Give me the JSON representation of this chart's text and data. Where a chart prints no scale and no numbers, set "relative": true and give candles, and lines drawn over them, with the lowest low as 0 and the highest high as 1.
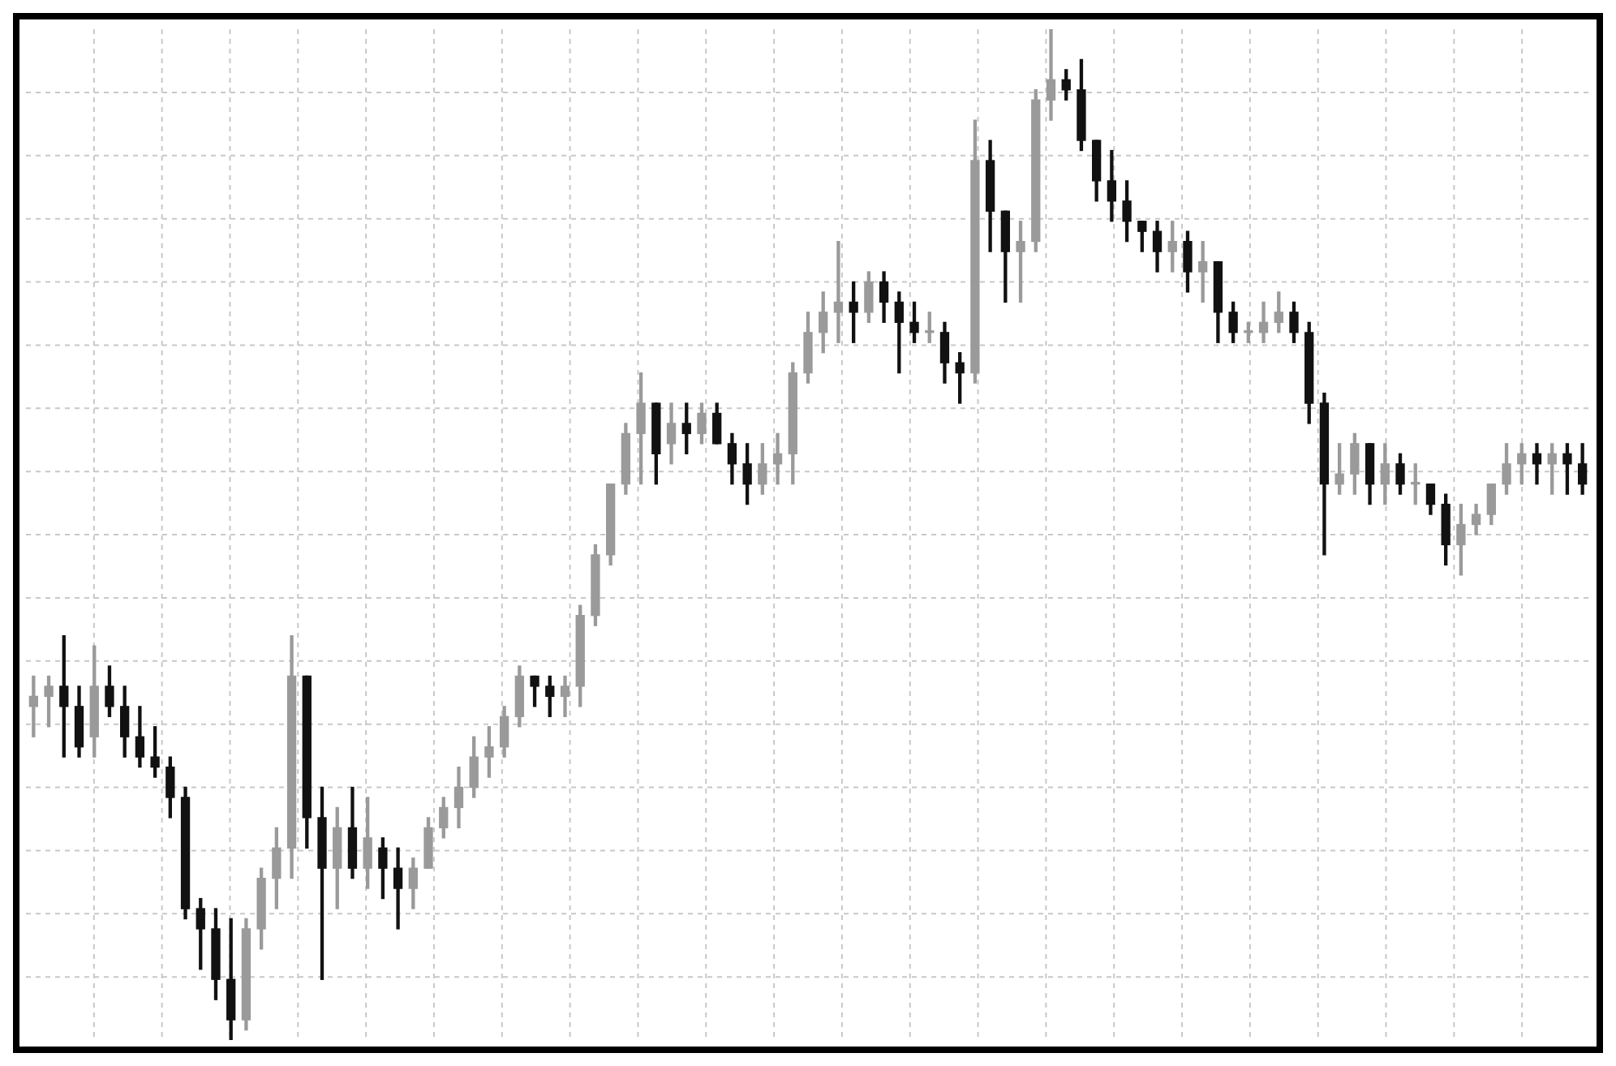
{
  "chart_data": {
    "type": "candlestick",
    "relative": true,
    "grid": true,
    "categories": [
      null,
      null,
      null,
      null,
      null,
      null,
      null,
      null,
      null,
      null,
      null,
      null,
      null,
      null,
      null,
      null,
      null,
      null,
      null,
      null,
      null,
      null,
      null,
      null,
      null,
      null,
      null,
      null,
      null,
      null,
      null,
      null,
      null,
      null,
      null,
      null,
      null,
      null,
      null,
      null,
      null,
      null,
      null,
      null,
      null,
      null,
      null,
      null,
      null,
      null,
      null,
      null,
      null,
      null,
      null,
      null,
      null,
      null,
      null,
      null,
      null,
      null,
      null,
      null,
      null,
      null,
      null,
      null,
      null,
      null,
      null,
      null,
      null,
      null,
      null,
      null,
      null,
      null,
      null,
      null,
      null,
      null,
      null,
      null,
      null,
      null,
      null,
      null,
      null,
      null,
      null,
      null,
      null,
      null,
      null,
      null,
      null,
      null,
      null,
      null,
      null,
      null,
      null
    ],
    "ohlc": [
      [
        0.33,
        0.36,
        0.3,
        0.34
      ],
      [
        0.34,
        0.36,
        0.31,
        0.35
      ],
      [
        0.35,
        0.4,
        0.28,
        0.33
      ],
      [
        0.33,
        0.35,
        0.28,
        0.29
      ],
      [
        0.3,
        0.39,
        0.28,
        0.35
      ],
      [
        0.35,
        0.37,
        0.32,
        0.33
      ],
      [
        0.33,
        0.35,
        0.28,
        0.3
      ],
      [
        0.3,
        0.33,
        0.27,
        0.28
      ],
      [
        0.28,
        0.31,
        0.26,
        0.27
      ],
      [
        0.27,
        0.28,
        0.22,
        0.24
      ],
      [
        0.24,
        0.25,
        0.12,
        0.13
      ],
      [
        0.13,
        0.14,
        0.07,
        0.11
      ],
      [
        0.11,
        0.13,
        0.04,
        0.06
      ],
      [
        0.06,
        0.12,
        0.0,
        0.02
      ],
      [
        0.02,
        0.12,
        0.01,
        0.11
      ],
      [
        0.11,
        0.17,
        0.09,
        0.16
      ],
      [
        0.16,
        0.21,
        0.13,
        0.19
      ],
      [
        0.19,
        0.4,
        0.16,
        0.36
      ],
      [
        0.36,
        0.36,
        0.19,
        0.22
      ],
      [
        0.22,
        0.25,
        0.06,
        0.17
      ],
      [
        0.17,
        0.23,
        0.13,
        0.21
      ],
      [
        0.21,
        0.25,
        0.16,
        0.17
      ],
      [
        0.17,
        0.24,
        0.15,
        0.2
      ],
      [
        0.19,
        0.2,
        0.14,
        0.17
      ],
      [
        0.17,
        0.19,
        0.11,
        0.15
      ],
      [
        0.15,
        0.18,
        0.13,
        0.17
      ],
      [
        0.17,
        0.22,
        0.17,
        0.21
      ],
      [
        0.21,
        0.24,
        0.2,
        0.23
      ],
      [
        0.23,
        0.27,
        0.21,
        0.25
      ],
      [
        0.25,
        0.3,
        0.24,
        0.28
      ],
      [
        0.28,
        0.31,
        0.26,
        0.29
      ],
      [
        0.29,
        0.33,
        0.28,
        0.32
      ],
      [
        0.32,
        0.37,
        0.31,
        0.36
      ],
      [
        0.36,
        0.36,
        0.33,
        0.35
      ],
      [
        0.35,
        0.36,
        0.32,
        0.34
      ],
      [
        0.34,
        0.36,
        0.32,
        0.35
      ],
      [
        0.35,
        0.43,
        0.33,
        0.42
      ],
      [
        0.42,
        0.49,
        0.41,
        0.48
      ],
      [
        0.48,
        0.55,
        0.47,
        0.55
      ],
      [
        0.55,
        0.61,
        0.54,
        0.6
      ],
      [
        0.6,
        0.66,
        0.55,
        0.63
      ],
      [
        0.63,
        0.63,
        0.55,
        0.58
      ],
      [
        0.59,
        0.63,
        0.57,
        0.61
      ],
      [
        0.61,
        0.63,
        0.58,
        0.6
      ],
      [
        0.6,
        0.63,
        0.59,
        0.62
      ],
      [
        0.62,
        0.63,
        0.59,
        0.59
      ],
      [
        0.59,
        0.6,
        0.55,
        0.57
      ],
      [
        0.57,
        0.59,
        0.53,
        0.55
      ],
      [
        0.55,
        0.59,
        0.54,
        0.57
      ],
      [
        0.57,
        0.6,
        0.55,
        0.58
      ],
      [
        0.58,
        0.67,
        0.55,
        0.66
      ],
      [
        0.66,
        0.72,
        0.65,
        0.7
      ],
      [
        0.7,
        0.74,
        0.68,
        0.72
      ],
      [
        0.72,
        0.79,
        0.69,
        0.73
      ],
      [
        0.73,
        0.75,
        0.69,
        0.72
      ],
      [
        0.72,
        0.76,
        0.71,
        0.75
      ],
      [
        0.75,
        0.76,
        0.71,
        0.73
      ],
      [
        0.73,
        0.74,
        0.66,
        0.71
      ],
      [
        0.71,
        0.73,
        0.69,
        0.7
      ],
      [
        0.7,
        0.72,
        0.69,
        0.7
      ],
      [
        0.7,
        0.71,
        0.65,
        0.67
      ],
      [
        0.67,
        0.68,
        0.63,
        0.66
      ],
      [
        0.66,
        0.91,
        0.65,
        0.87
      ],
      [
        0.87,
        0.89,
        0.78,
        0.82
      ],
      [
        0.82,
        0.82,
        0.73,
        0.78
      ],
      [
        0.78,
        0.81,
        0.73,
        0.79
      ],
      [
        0.79,
        0.94,
        0.78,
        0.93
      ],
      [
        0.93,
        1.0,
        0.91,
        0.95
      ],
      [
        0.95,
        0.96,
        0.93,
        0.94
      ],
      [
        0.94,
        0.97,
        0.88,
        0.89
      ],
      [
        0.89,
        0.89,
        0.83,
        0.85
      ],
      [
        0.85,
        0.88,
        0.81,
        0.83
      ],
      [
        0.83,
        0.85,
        0.79,
        0.81
      ],
      [
        0.81,
        0.81,
        0.78,
        0.8
      ],
      [
        0.8,
        0.81,
        0.76,
        0.78
      ],
      [
        0.78,
        0.81,
        0.76,
        0.79
      ],
      [
        0.79,
        0.8,
        0.74,
        0.76
      ],
      [
        0.76,
        0.79,
        0.73,
        0.77
      ],
      [
        0.77,
        0.77,
        0.69,
        0.72
      ],
      [
        0.72,
        0.73,
        0.69,
        0.7
      ],
      [
        0.7,
        0.71,
        0.69,
        0.7
      ],
      [
        0.7,
        0.73,
        0.69,
        0.71
      ],
      [
        0.71,
        0.74,
        0.7,
        0.72
      ],
      [
        0.72,
        0.73,
        0.69,
        0.7
      ],
      [
        0.7,
        0.71,
        0.61,
        0.63
      ],
      [
        0.63,
        0.64,
        0.48,
        0.55
      ],
      [
        0.55,
        0.59,
        0.54,
        0.56
      ],
      [
        0.56,
        0.6,
        0.54,
        0.59
      ],
      [
        0.59,
        0.59,
        0.53,
        0.55
      ],
      [
        0.55,
        0.59,
        0.53,
        0.57
      ],
      [
        0.57,
        0.58,
        0.54,
        0.55
      ],
      [
        0.55,
        0.57,
        0.53,
        0.55
      ],
      [
        0.55,
        0.55,
        0.52,
        0.53
      ],
      [
        0.53,
        0.54,
        0.47,
        0.49
      ],
      [
        0.49,
        0.53,
        0.46,
        0.51
      ],
      [
        0.51,
        0.53,
        0.5,
        0.52
      ],
      [
        0.52,
        0.55,
        0.51,
        0.55
      ],
      [
        0.55,
        0.59,
        0.54,
        0.57
      ],
      [
        0.57,
        0.59,
        0.55,
        0.58
      ],
      [
        0.58,
        0.59,
        0.55,
        0.57
      ],
      [
        0.57,
        0.59,
        0.54,
        0.58
      ],
      [
        0.58,
        0.59,
        0.54,
        0.57
      ],
      [
        0.57,
        0.59,
        0.54,
        0.55
      ]
    ]
  }
}
